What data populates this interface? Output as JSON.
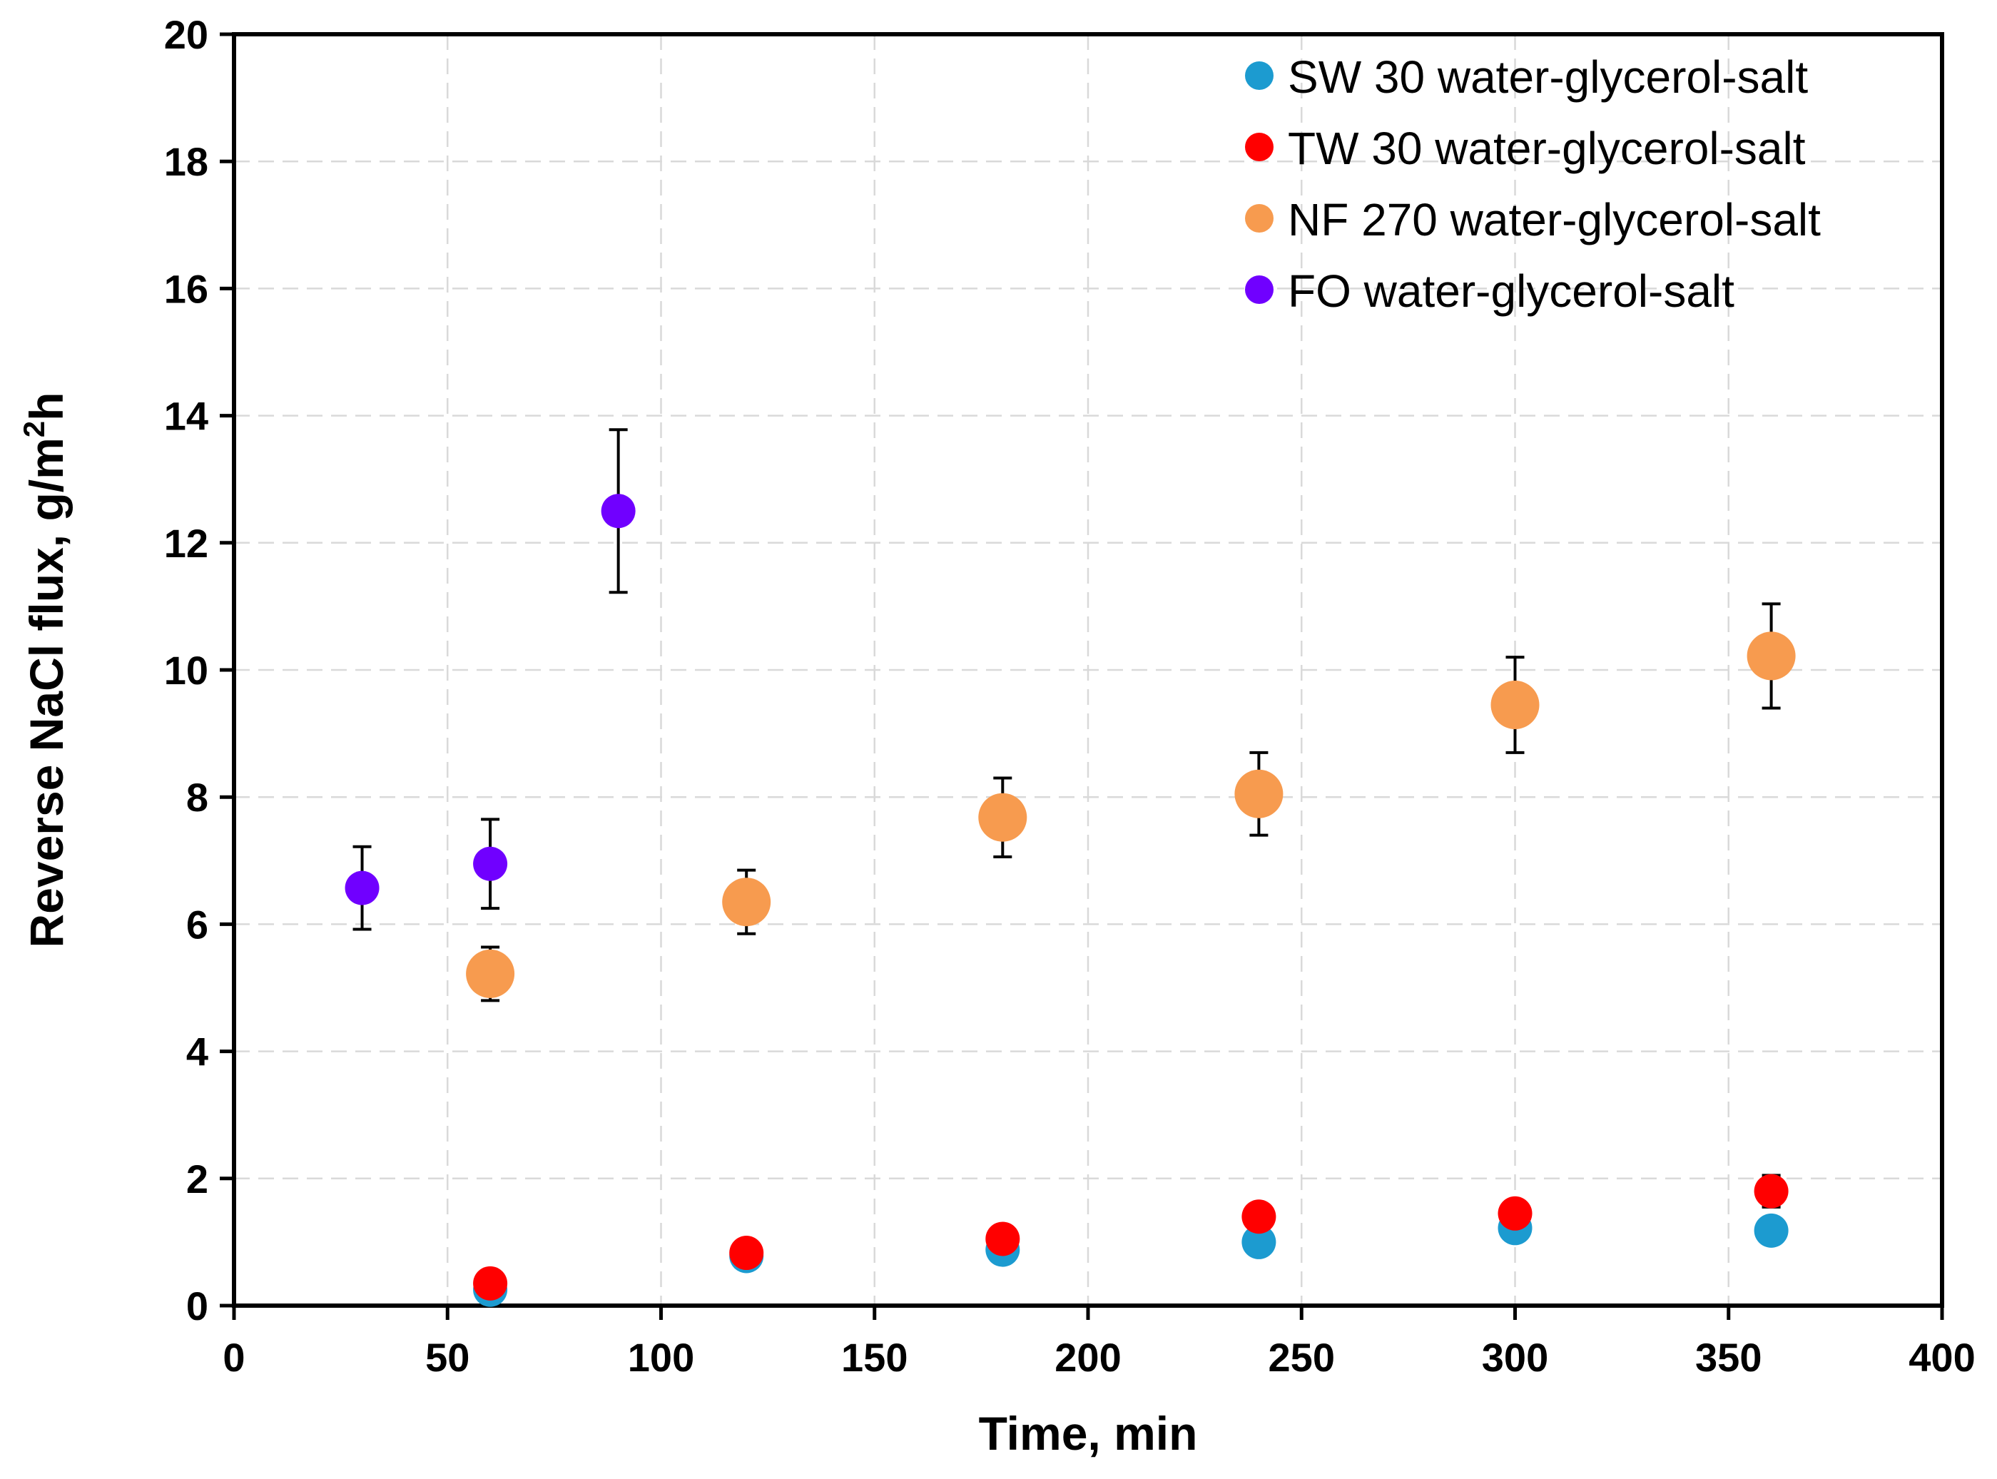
{
  "chart_data": {
    "type": "scatter",
    "title": "",
    "xlabel": "Time, min",
    "ylabel_main": "Reverse NaCl flux, g/m",
    "ylabel_sup": "2",
    "ylabel_tail": "h",
    "xlim": [
      0,
      400
    ],
    "ylim": [
      0,
      20
    ],
    "xticks": [
      0,
      50,
      100,
      150,
      200,
      250,
      300,
      350,
      400
    ],
    "yticks": [
      0,
      2,
      4,
      6,
      8,
      10,
      12,
      14,
      16,
      18,
      20
    ],
    "grid": true,
    "legend_position": "top-right",
    "series": [
      {
        "name": "SW 30 water-glycerol-salt",
        "color": "#1c9bd0",
        "x": [
          60,
          120,
          180,
          240,
          300,
          360
        ],
        "y": [
          0.25,
          0.78,
          0.88,
          1.0,
          1.22,
          1.18
        ],
        "err": [
          0,
          0,
          0,
          0,
          0,
          0
        ]
      },
      {
        "name": "TW 30 water-glycerol-salt",
        "color": "#ff0000",
        "x": [
          60,
          120,
          180,
          240,
          300,
          360
        ],
        "y": [
          0.35,
          0.83,
          1.05,
          1.4,
          1.45,
          1.8
        ],
        "err": [
          0,
          0,
          0,
          0,
          0.1,
          0.25
        ]
      },
      {
        "name": "NF 270 water-glycerol-salt",
        "color": "#f79b4f",
        "x": [
          60,
          120,
          180,
          240,
          300,
          360
        ],
        "y": [
          5.22,
          6.35,
          7.68,
          8.05,
          9.45,
          10.22
        ],
        "err": [
          0.42,
          0.5,
          0.62,
          0.65,
          0.75,
          0.82
        ]
      },
      {
        "name": "FO water-glycerol-salt",
        "color": "#7000ff",
        "x": [
          30,
          60,
          90
        ],
        "y": [
          6.57,
          6.95,
          12.5
        ],
        "err": [
          0.65,
          0.7,
          1.28
        ]
      }
    ]
  }
}
